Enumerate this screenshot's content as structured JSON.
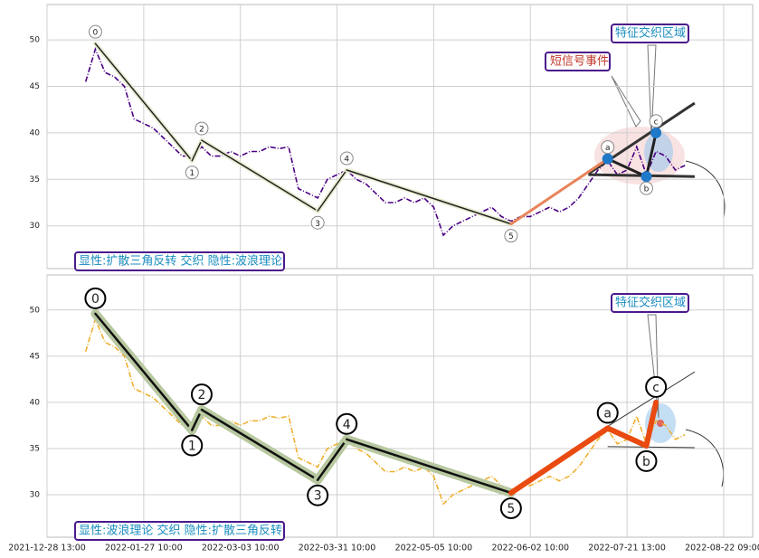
{
  "chart_data": [
    {
      "type": "line",
      "annotation": "显性:扩散三角反转 交织 隐性:波浪理论",
      "callouts": [
        "短信号事件",
        "特征交织区域"
      ],
      "xlim": [
        0,
        73
      ],
      "ylim": [
        25.4,
        53.8
      ],
      "yticks": [
        30,
        35,
        40,
        45,
        50
      ],
      "grid": true,
      "series": [
        {
          "color": "#4b0082",
          "dash": "6,2,1,2",
          "x": [
            4,
            5,
            6,
            7,
            8,
            9,
            10,
            11,
            12,
            13,
            14,
            15,
            16,
            17,
            18,
            19,
            20,
            21,
            22,
            23,
            24,
            25,
            26,
            27,
            28,
            29,
            30,
            31,
            32,
            33,
            34,
            35,
            36,
            37,
            38,
            39,
            40,
            41,
            42,
            43,
            44,
            45,
            46,
            47,
            48,
            49,
            50,
            51,
            52,
            53,
            54,
            55,
            56,
            57,
            58,
            59,
            60,
            61,
            62,
            63,
            64,
            65,
            66
          ],
          "values": [
            45.5,
            49,
            46.5,
            46,
            45,
            41.5,
            41,
            40.5,
            39.5,
            38.5,
            37.5,
            37.5,
            38.5,
            37.5,
            37.5,
            38,
            37.5,
            38,
            38,
            38.5,
            38.3,
            38.5,
            34,
            33.5,
            33,
            35,
            35.5,
            36,
            35,
            34.5,
            33.5,
            32.5,
            32.5,
            33,
            32.5,
            33,
            32,
            29,
            30,
            30.5,
            31,
            31.5,
            32,
            31,
            30.5,
            31,
            31,
            31.5,
            32,
            31.5,
            32,
            33,
            34.5,
            36,
            37,
            35.5,
            36,
            38.5,
            35.5,
            38,
            37.5,
            36,
            36.5
          ]
        }
      ],
      "wave": {
        "labels": [
          "0",
          "1",
          "2",
          "3",
          "4",
          "5",
          "a",
          "b",
          "c"
        ],
        "x": [
          5,
          15,
          16,
          28,
          31,
          48,
          58,
          62,
          63
        ],
        "values": [
          49.6,
          37,
          39.2,
          31.6,
          36,
          30.2,
          37.2,
          35.3,
          40
        ],
        "color": "#222222",
        "halo": "#e8ecd0",
        "tail_color": "#e8845a"
      },
      "triangle": {
        "x": [
          56,
          67
        ],
        "upper": [
          35.6,
          43.2
        ],
        "lower": [
          35.5,
          35.3
        ],
        "color": "#333333"
      }
    },
    {
      "type": "line",
      "annotation": "显性:波浪理论 交织 隐性:扩散三角反转",
      "callouts": [
        "特征交织区域"
      ],
      "xlim": [
        0,
        73
      ],
      "ylim": [
        25.4,
        53.8
      ],
      "yticks": [
        30,
        35,
        40,
        45,
        50
      ],
      "grid": true,
      "xticks": [
        {
          "value": 0,
          "label": "2021-12-28 13:00"
        },
        {
          "value": 10,
          "label": "2022-01-27 10:00"
        },
        {
          "value": 20,
          "label": "2022-03-03 10:00"
        },
        {
          "value": 30,
          "label": "2022-03-31 10:00"
        },
        {
          "value": 40,
          "label": "2022-05-05 10:00"
        },
        {
          "value": 50,
          "label": "2022-06-02 10:00"
        },
        {
          "value": 60,
          "label": "2022-07-21 13:00"
        },
        {
          "value": 70,
          "label": "2022-08-22 09:00"
        }
      ],
      "series": [
        {
          "color": "#f0b030",
          "dash": "6,2,1,2",
          "x": [
            4,
            5,
            6,
            7,
            8,
            9,
            10,
            11,
            12,
            13,
            14,
            15,
            16,
            17,
            18,
            19,
            20,
            21,
            22,
            23,
            24,
            25,
            26,
            27,
            28,
            29,
            30,
            31,
            32,
            33,
            34,
            35,
            36,
            37,
            38,
            39,
            40,
            41,
            42,
            43,
            44,
            45,
            46,
            47,
            48,
            49,
            50,
            51,
            52,
            53,
            54,
            55,
            56,
            57,
            58,
            59,
            60,
            61,
            62,
            63,
            64,
            65,
            66
          ],
          "values": [
            45.5,
            49,
            46.5,
            46,
            45,
            41.5,
            41,
            40.5,
            39.5,
            38.5,
            37.5,
            37.5,
            38.5,
            37.5,
            37.5,
            38,
            37.5,
            38,
            38,
            38.5,
            38.3,
            38.5,
            34,
            33.5,
            33,
            35,
            35.5,
            36,
            35,
            34.5,
            33.5,
            32.5,
            32.5,
            33,
            32.5,
            33,
            32,
            29,
            30,
            30.5,
            31,
            31.5,
            32,
            31,
            30.5,
            31,
            31,
            31.5,
            32,
            31.5,
            32,
            33,
            34.5,
            36,
            37,
            35.5,
            36,
            38.5,
            35.5,
            38,
            37.5,
            36,
            36.5
          ]
        }
      ],
      "wave": {
        "labels": [
          "0",
          "1",
          "2",
          "3",
          "4",
          "5",
          "a",
          "b",
          "c"
        ],
        "x": [
          5,
          15,
          16,
          28,
          31,
          48,
          58,
          62,
          63
        ],
        "values": [
          49.6,
          37,
          39.2,
          31.6,
          36,
          30.2,
          37.2,
          35.3,
          40
        ],
        "color": "#111111",
        "halo": "#b8c8a0",
        "tail_color": "#e84a10"
      },
      "triangle": {
        "x": [
          58,
          67
        ],
        "upper": [
          37.4,
          43.3
        ],
        "lower": [
          35.2,
          35.1
        ],
        "color": "#333333"
      }
    }
  ]
}
